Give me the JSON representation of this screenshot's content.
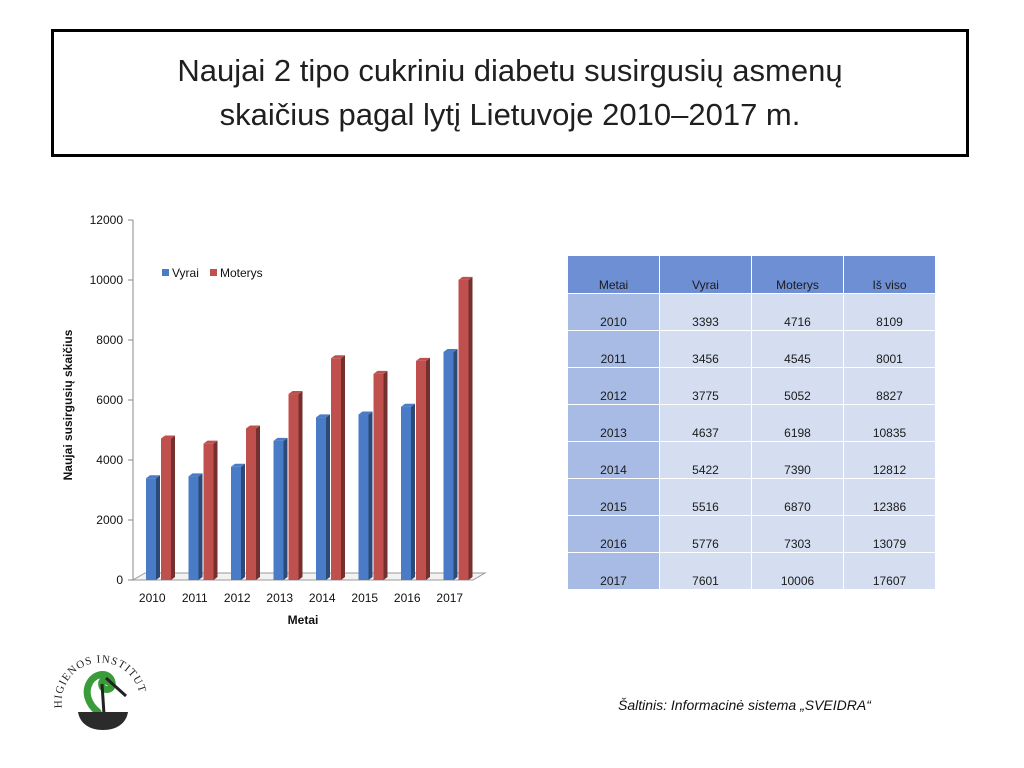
{
  "title": {
    "line1": "Naujai 2 tipo cukriniu diabetu susirgusių asmenų",
    "line2": "skaičius pagal lytį Lietuvoje 2010–2017 m."
  },
  "chart_data": {
    "type": "bar",
    "categories": [
      "2010",
      "2011",
      "2012",
      "2013",
      "2014",
      "2015",
      "2016",
      "2017"
    ],
    "series": [
      {
        "name": "Vyrai",
        "color": "#4a7bc6",
        "values": [
          3393,
          3456,
          3775,
          4637,
          5422,
          5516,
          5776,
          7601
        ]
      },
      {
        "name": "Moterys",
        "color": "#c0504d",
        "values": [
          4716,
          4545,
          5052,
          6198,
          7390,
          6870,
          7303,
          10006
        ]
      }
    ],
    "xlabel": "Metai",
    "ylabel": "Naujai susirgusių skaičius",
    "ylim": [
      0,
      12000
    ],
    "yticks": [
      "0",
      "2000",
      "4000",
      "6000",
      "8000",
      "10000",
      "12000"
    ],
    "legend": "top-left"
  },
  "table": {
    "headers": [
      "Metai",
      "Vyrai",
      "Moterys",
      "Iš viso"
    ],
    "rows": [
      [
        "2010",
        "3393",
        "4716",
        "8109"
      ],
      [
        "2011",
        "3456",
        "4545",
        "8001"
      ],
      [
        "2012",
        "3775",
        "5052",
        "8827"
      ],
      [
        "2013",
        "4637",
        "6198",
        "10835"
      ],
      [
        "2014",
        "5422",
        "7390",
        "12812"
      ],
      [
        "2015",
        "5516",
        "6870",
        "12386"
      ],
      [
        "2016",
        "5776",
        "7303",
        "13079"
      ],
      [
        "2017",
        "7601",
        "10006",
        "17607"
      ]
    ]
  },
  "logo": {
    "text": "HIGIENOS INSTITUTAS"
  },
  "source": "Šaltinis: Informacinė sistema „SVEIDRA“"
}
